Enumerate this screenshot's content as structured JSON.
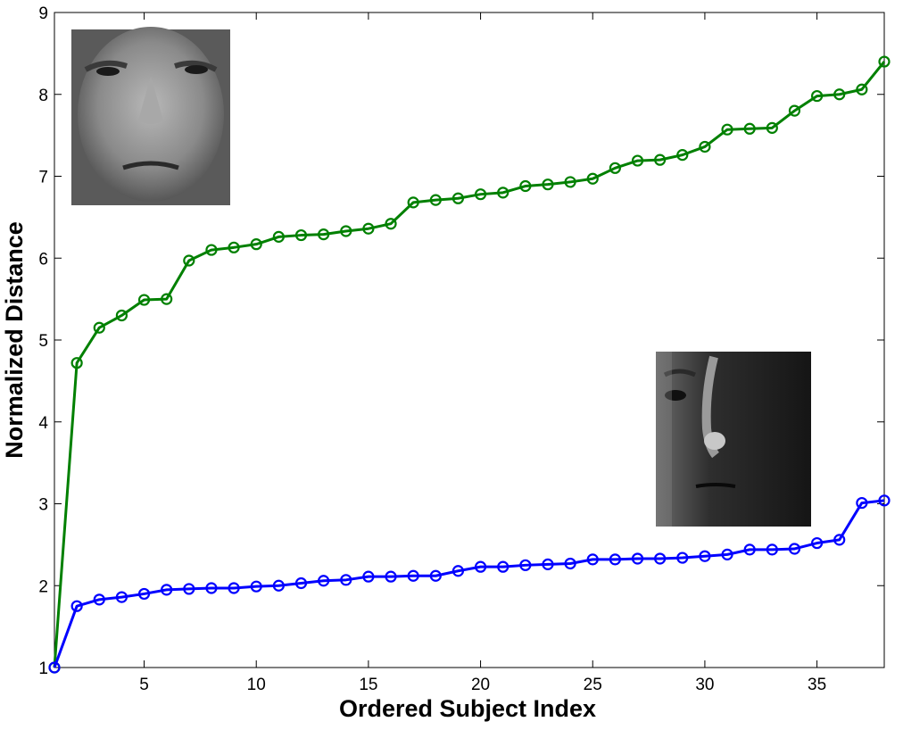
{
  "chart_data": {
    "type": "line",
    "title": "",
    "xlabel": "Ordered Subject Index",
    "ylabel": "Normalized Distance",
    "xlim": [
      1,
      38
    ],
    "ylim": [
      1,
      9
    ],
    "xticks": [
      5,
      10,
      15,
      20,
      25,
      30,
      35
    ],
    "yticks": [
      1,
      2,
      3,
      4,
      5,
      6,
      7,
      8,
      9
    ],
    "grid": false,
    "legend": "none",
    "marker": "circle",
    "x": [
      1,
      2,
      3,
      4,
      5,
      6,
      7,
      8,
      9,
      10,
      11,
      12,
      13,
      14,
      15,
      16,
      17,
      18,
      19,
      20,
      21,
      22,
      23,
      24,
      25,
      26,
      27,
      28,
      29,
      30,
      31,
      32,
      33,
      34,
      35,
      36,
      37,
      38
    ],
    "series": [
      {
        "color": "#008000",
        "values": [
          1.0,
          4.72,
          5.15,
          5.3,
          5.49,
          5.5,
          5.97,
          6.1,
          6.13,
          6.17,
          6.26,
          6.28,
          6.29,
          6.33,
          6.36,
          6.42,
          6.68,
          6.71,
          6.73,
          6.78,
          6.8,
          6.88,
          6.9,
          6.93,
          6.97,
          7.1,
          7.19,
          7.2,
          7.26,
          7.36,
          7.57,
          7.58,
          7.59,
          7.8,
          7.98,
          8.0,
          8.06,
          8.4
        ]
      },
      {
        "color": "#0000ff",
        "values": [
          1.0,
          1.75,
          1.83,
          1.86,
          1.9,
          1.95,
          1.96,
          1.97,
          1.97,
          1.99,
          2.0,
          2.03,
          2.06,
          2.07,
          2.11,
          2.11,
          2.12,
          2.12,
          2.18,
          2.23,
          2.23,
          2.25,
          2.26,
          2.27,
          2.32,
          2.32,
          2.33,
          2.33,
          2.34,
          2.36,
          2.38,
          2.44,
          2.44,
          2.45,
          2.52,
          2.56,
          3.01,
          3.04
        ]
      }
    ],
    "insets": [
      {
        "name": "frontal-lit-face-image",
        "position": "top-left"
      },
      {
        "name": "side-lit-face-image",
        "position": "bottom-right"
      }
    ]
  }
}
